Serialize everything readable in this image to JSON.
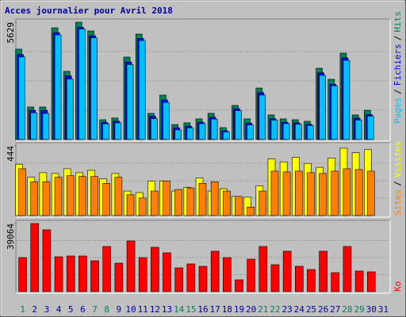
{
  "chart_data": [
    {
      "type": "bar",
      "title": "Acces journalier pour Avril 2018",
      "categories": [
        "1",
        "2",
        "3",
        "4",
        "5",
        "6",
        "7",
        "8",
        "9",
        "10",
        "11",
        "12",
        "13",
        "14",
        "15",
        "16",
        "17",
        "18",
        "19",
        "20",
        "21",
        "22",
        "23",
        "24",
        "25",
        "26",
        "27",
        "28",
        "29",
        "30",
        "31"
      ],
      "category_colors": [
        "#00805c",
        "#0000a0",
        "#0000a0",
        "#0000a0",
        "#0000a0",
        "#0000a0",
        "#00805c",
        "#00805c",
        "#0000a0",
        "#0000a0",
        "#0000a0",
        "#0000a0",
        "#0000a0",
        "#00805c",
        "#00805c",
        "#0000a0",
        "#0000a0",
        "#0000a0",
        "#0000a0",
        "#0000a0",
        "#00805c",
        "#00805c",
        "#0000a0",
        "#0000a0",
        "#0000a0",
        "#0000a0",
        "#0000a0",
        "#00805c",
        "#00805c",
        "#0000a0",
        "#0000a0"
      ],
      "legend_separator": "/",
      "ylim": [
        0,
        5629
      ],
      "yticks": [
        5629
      ],
      "series": [
        {
          "name": "Hits",
          "color": "#00805c",
          "values": [
            4336,
            1560,
            1560,
            5360,
            3270,
            5629,
            5210,
            950,
            1030,
            3955,
            5060,
            1255,
            2130,
            720,
            800,
            990,
            1255,
            570,
            1635,
            990,
            2470,
            1180,
            990,
            950,
            875,
            3420,
            2890,
            4145,
            1180,
            1405,
            null
          ]
        },
        {
          "name": "Fichiers",
          "color": "#0000ff",
          "values": [
            4080,
            1400,
            1400,
            5130,
            3050,
            5380,
            4980,
            820,
            880,
            3720,
            4850,
            1120,
            1900,
            560,
            640,
            830,
            1070,
            420,
            1480,
            790,
            2250,
            1000,
            830,
            800,
            730,
            3200,
            2650,
            3920,
            1030,
            1200,
            null
          ]
        },
        {
          "name": "Pages",
          "color": "#00c0ff",
          "values": [
            3960,
            1280,
            1250,
            5020,
            2900,
            5300,
            4880,
            750,
            800,
            3600,
            4750,
            1000,
            1780,
            460,
            560,
            760,
            980,
            360,
            1380,
            700,
            2130,
            930,
            760,
            730,
            670,
            3080,
            2580,
            3800,
            930,
            1120,
            null
          ]
        }
      ]
    },
    {
      "type": "bar",
      "ylim": [
        0,
        444
      ],
      "yticks": [
        444
      ],
      "series": [
        {
          "name": "Visites",
          "color": "#ffff00",
          "values": [
            327,
            244,
            273,
            268,
            298,
            273,
            288,
            234,
            268,
            156,
            146,
            220,
            220,
            156,
            180,
            239,
            156,
            171,
            122,
            117,
            190,
            361,
            342,
            371,
            332,
            307,
            366,
            429,
            400,
            420,
            null
          ]
        },
        {
          "name": "Sites",
          "color": "#ff8000",
          "values": [
            298,
            215,
            215,
            244,
            254,
            249,
            249,
            205,
            244,
            132,
            112,
            156,
            220,
            166,
            176,
            205,
            215,
            156,
            122,
            54,
            156,
            283,
            278,
            283,
            273,
            268,
            283,
            298,
            293,
            283,
            null
          ]
        }
      ]
    },
    {
      "type": "bar",
      "ylim": [
        0,
        39064
      ],
      "yticks": [
        39064
      ],
      "series": [
        {
          "name": "Ko",
          "color": "#ff0000",
          "values": [
            19530,
            39064,
            35430,
            19990,
            20440,
            20440,
            17710,
            25890,
            16350,
            29070,
            19530,
            25440,
            22260,
            13630,
            15900,
            14540,
            23170,
            19530,
            6810,
            18620,
            25890,
            15440,
            23170,
            14540,
            12720,
            23170,
            10900,
            25890,
            11810,
            11360,
            null
          ]
        }
      ]
    }
  ]
}
